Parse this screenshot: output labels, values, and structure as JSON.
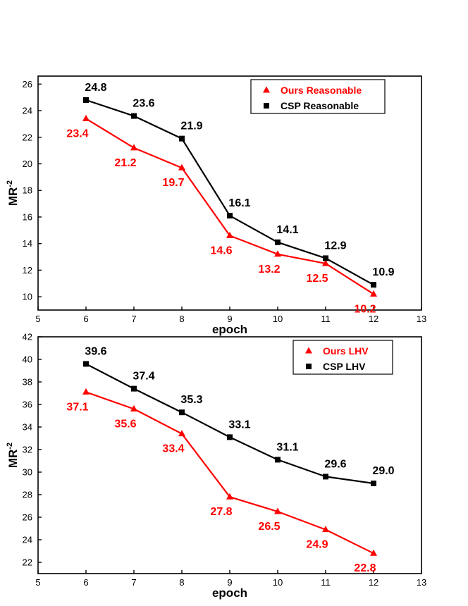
{
  "chart_data": [
    {
      "type": "line",
      "xlabel": "epoch",
      "ylabel": "MR",
      "ylabel_sup": "-2",
      "xlim": [
        5,
        13
      ],
      "ylim": [
        9,
        26.6
      ],
      "xticks": [
        5,
        6,
        7,
        8,
        9,
        10,
        11,
        12,
        13
      ],
      "yticks": [
        10,
        12,
        14,
        16,
        18,
        20,
        22,
        24,
        26
      ],
      "legend_position": "top-right",
      "grid": false,
      "series": [
        {
          "name": "Ours Reasonable",
          "color": "#ff0000",
          "marker": "triangle",
          "x": [
            6,
            7,
            8,
            9,
            10,
            11,
            12
          ],
          "y": [
            23.4,
            21.2,
            19.7,
            14.6,
            13.2,
            12.5,
            10.2
          ],
          "labels": [
            "23.4",
            "21.2",
            "19.7",
            "14.6",
            "13.2",
            "12.5",
            "10.2"
          ]
        },
        {
          "name": "CSP Reasonable",
          "color": "#000000",
          "marker": "square",
          "x": [
            6,
            7,
            8,
            9,
            10,
            11,
            12
          ],
          "y": [
            24.8,
            23.6,
            21.9,
            16.1,
            14.1,
            12.9,
            10.9
          ],
          "labels": [
            "24.8",
            "23.6",
            "21.9",
            "16.1",
            "14.1",
            "12.9",
            "10.9"
          ]
        }
      ]
    },
    {
      "type": "line",
      "xlabel": "epoch",
      "ylabel": "MR",
      "ylabel_sup": "-2",
      "xlim": [
        5,
        13
      ],
      "ylim": [
        21,
        42
      ],
      "xticks": [
        5,
        6,
        7,
        8,
        9,
        10,
        11,
        12,
        13
      ],
      "yticks": [
        22,
        24,
        26,
        28,
        30,
        32,
        34,
        36,
        38,
        40,
        42
      ],
      "legend_position": "top-right",
      "grid": false,
      "series": [
        {
          "name": "Ours LHV",
          "color": "#ff0000",
          "marker": "triangle",
          "x": [
            6,
            7,
            8,
            9,
            10,
            11,
            12
          ],
          "y": [
            37.1,
            35.6,
            33.4,
            27.8,
            26.5,
            24.9,
            22.8
          ],
          "labels": [
            "37.1",
            "35.6",
            "33.4",
            "27.8",
            "26.5",
            "24.9",
            "22.8"
          ]
        },
        {
          "name": "CSP LHV",
          "color": "#000000",
          "marker": "square",
          "x": [
            6,
            7,
            8,
            9,
            10,
            11,
            12
          ],
          "y": [
            39.6,
            37.4,
            35.3,
            33.1,
            31.1,
            29.6,
            29.0
          ],
          "labels": [
            "39.6",
            "37.4",
            "35.3",
            "33.1",
            "31.1",
            "29.6",
            "29.0"
          ]
        }
      ]
    }
  ]
}
